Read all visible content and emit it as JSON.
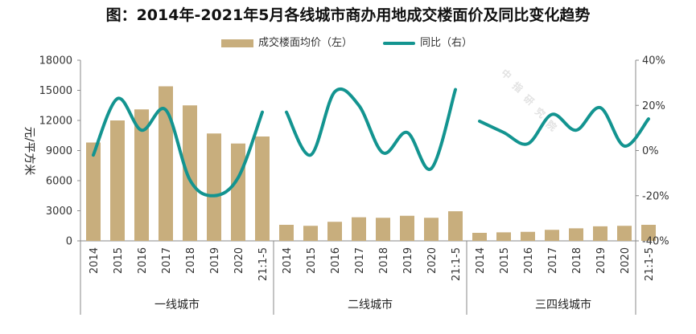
{
  "chart_data": {
    "type": "bar+line",
    "title": "图：2014年-2021年5月各线城市商办用地成交楼面价及同比变化趋势",
    "ylabel": "元/平方米",
    "ylim_left": [
      0,
      18000
    ],
    "yticks_left": [
      "0",
      "3000",
      "6000",
      "9000",
      "12000",
      "15000",
      "18000"
    ],
    "ylim_right": [
      -40,
      40
    ],
    "yticks_right": [
      "-40%",
      "-20%",
      "0%",
      "20%",
      "40%"
    ],
    "categories": [
      "2014",
      "2015",
      "2016",
      "2017",
      "2018",
      "2019",
      "2020",
      "21:1-5"
    ],
    "groups": [
      "一线城市",
      "二线城市",
      "三四线城市"
    ],
    "bar_color": "#C8AE7D",
    "line_color": "#139490",
    "series": [
      {
        "name": "成交楼面均价（左）",
        "kind": "bar",
        "values": [
          [
            9800,
            12000,
            13100,
            15400,
            13500,
            10700,
            9700,
            10400
          ],
          [
            1600,
            1500,
            1900,
            2350,
            2300,
            2500,
            2300,
            2950
          ],
          [
            800,
            850,
            900,
            1100,
            1250,
            1450,
            1500,
            1600
          ]
        ]
      },
      {
        "name": "同比（右）",
        "kind": "line",
        "values": [
          [
            -2,
            23,
            9,
            18,
            -13,
            -20,
            -12,
            17
          ],
          [
            17,
            -2,
            26,
            20,
            -1,
            8,
            -8,
            27
          ],
          [
            13,
            8,
            3,
            16,
            9,
            19,
            2,
            14
          ]
        ]
      }
    ],
    "watermark": "中指研究院"
  }
}
